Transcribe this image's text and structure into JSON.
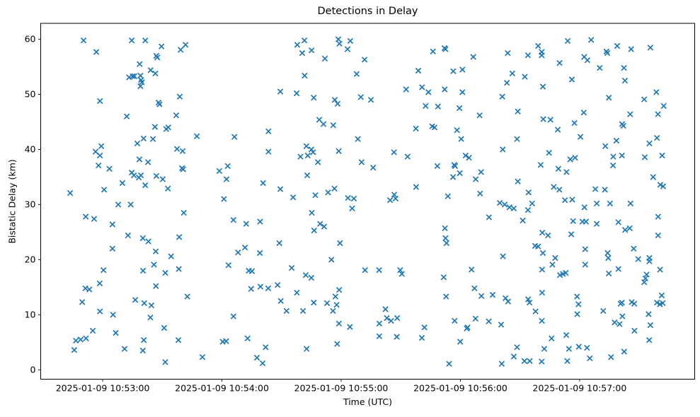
{
  "chart_data": {
    "type": "scatter",
    "title": "Detections in Delay",
    "xlabel": "Time (UTC)",
    "ylabel": "Bistatic Delay (km)",
    "marker": "x",
    "marker_color": "#1f77b4",
    "grid": false,
    "legend": null,
    "x_axis": {
      "time_unit": "seconds after 2025-01-09 10:52:00 UTC",
      "range_s": [
        28.8,
        357.9
      ],
      "tick_s": [
        60,
        120,
        180,
        240,
        300
      ],
      "tick_labels": [
        "2025-01-09 10:53:00",
        "2025-01-09 10:54:00",
        "2025-01-09 10:55:00",
        "2025-01-09 10:56:00",
        "2025-01-09 10:57:00"
      ]
    },
    "y_axis": {
      "range": [
        -1.7,
        62.9
      ],
      "ticks": [
        0,
        10,
        20,
        30,
        40,
        50,
        60
      ],
      "tick_labels": [
        "0",
        "10",
        "20",
        "30",
        "40",
        "50",
        "60"
      ]
    },
    "points": [
      [
        50.4,
        59.8
      ],
      [
        56.8,
        57.7
      ],
      [
        74.6,
        59.8
      ],
      [
        81.4,
        59.8
      ],
      [
        89.6,
        58.7
      ],
      [
        99.2,
        58.1
      ],
      [
        101.7,
        59.0
      ],
      [
        87.0,
        57.0
      ],
      [
        87.5,
        56.7
      ],
      [
        78.6,
        55.5
      ],
      [
        84.1,
        54.4
      ],
      [
        86.5,
        53.8
      ],
      [
        73.3,
        53.1
      ],
      [
        75.1,
        53.3
      ],
      [
        76.0,
        53.3
      ],
      [
        79.0,
        53.4
      ],
      [
        79.3,
        52.6
      ],
      [
        79.7,
        52.2
      ],
      [
        79.0,
        51.5
      ],
      [
        58.6,
        48.8
      ],
      [
        98.8,
        49.6
      ],
      [
        88.1,
        48.5
      ],
      [
        88.6,
        48.2
      ],
      [
        72.1,
        46.0
      ],
      [
        97.0,
        46.2
      ],
      [
        86.3,
        44.1
      ],
      [
        92.0,
        43.7
      ],
      [
        93.0,
        44.0
      ],
      [
        107.4,
        42.4
      ],
      [
        80.6,
        42.0
      ],
      [
        85.3,
        41.9
      ],
      [
        77.4,
        41.1
      ],
      [
        59.3,
        40.6
      ],
      [
        56.4,
        39.6
      ],
      [
        58.6,
        38.9
      ],
      [
        97.4,
        40.1
      ],
      [
        100.2,
        39.7
      ],
      [
        57.9,
        37.1
      ],
      [
        63.4,
        36.5
      ],
      [
        78.5,
        38.2
      ],
      [
        82.8,
        37.7
      ],
      [
        74.6,
        35.8
      ],
      [
        75.7,
        35.3
      ],
      [
        78.2,
        34.9
      ],
      [
        79.2,
        35.3
      ],
      [
        87.0,
        35.2
      ],
      [
        90.2,
        34.6
      ],
      [
        99.9,
        36.6
      ],
      [
        100.5,
        36.4
      ],
      [
        69.9,
        33.9
      ],
      [
        81.4,
        33.5
      ],
      [
        92.8,
        32.9
      ],
      [
        60.7,
        32.7
      ],
      [
        43.6,
        32.1
      ],
      [
        67.8,
        30.0
      ],
      [
        74.1,
        30.0
      ],
      [
        51.5,
        27.8
      ],
      [
        55.7,
        27.4
      ],
      [
        100.8,
        28.5
      ],
      [
        64.9,
        26.4
      ],
      [
        72.7,
        24.4
      ],
      [
        80.2,
        23.9
      ],
      [
        83.0,
        23.3
      ],
      [
        98.5,
        24.1
      ],
      [
        64.9,
        22.0
      ],
      [
        86.7,
        21.5
      ],
      [
        94.4,
        20.6
      ],
      [
        85.8,
        19.1
      ],
      [
        80.3,
        18.0
      ],
      [
        91.5,
        17.6
      ],
      [
        98.3,
        18.3
      ],
      [
        60.4,
        18.1
      ],
      [
        58.5,
        15.7
      ],
      [
        51.3,
        14.8
      ],
      [
        53.3,
        14.6
      ],
      [
        86.8,
        15.2
      ],
      [
        102.6,
        13.3
      ],
      [
        49.7,
        12.3
      ],
      [
        76.4,
        12.7
      ],
      [
        80.9,
        12.1
      ],
      [
        84.5,
        11.7
      ],
      [
        58.6,
        10.6
      ],
      [
        65.2,
        10.0
      ],
      [
        84.0,
        9.5
      ],
      [
        90.9,
        7.6
      ],
      [
        66.6,
        6.7
      ],
      [
        55.0,
        7.1
      ],
      [
        46.5,
        5.3
      ],
      [
        48.9,
        5.5
      ],
      [
        51.6,
        5.7
      ],
      [
        80.7,
        5.4
      ],
      [
        98.1,
        5.4
      ],
      [
        45.7,
        3.6
      ],
      [
        71.0,
        3.8
      ],
      [
        80.2,
        3.5
      ],
      [
        110.2,
        2.3
      ],
      [
        91.5,
        1.4
      ],
      [
        157.9,
        59.0
      ],
      [
        161.5,
        59.8
      ],
      [
        160.4,
        57.5
      ],
      [
        165.1,
        58.0
      ],
      [
        178.6,
        60.0
      ],
      [
        179.1,
        59.2
      ],
      [
        184.6,
        59.7
      ],
      [
        183.2,
        58.2
      ],
      [
        171.8,
        56.5
      ],
      [
        191.8,
        56.3
      ],
      [
        161.6,
        53.4
      ],
      [
        187.8,
        53.7
      ],
      [
        149.4,
        50.5
      ],
      [
        157.6,
        50.2
      ],
      [
        166.2,
        49.4
      ],
      [
        176.8,
        49.0
      ],
      [
        178.2,
        48.3
      ],
      [
        189.9,
        49.5
      ],
      [
        169.0,
        45.4
      ],
      [
        171.1,
        44.6
      ],
      [
        176.0,
        44.4
      ],
      [
        143.4,
        43.3
      ],
      [
        126.3,
        42.3
      ],
      [
        188.4,
        41.9
      ],
      [
        143.4,
        39.6
      ],
      [
        162.5,
        40.6
      ],
      [
        165.0,
        40.0
      ],
      [
        159.5,
        38.7
      ],
      [
        163.2,
        38.9
      ],
      [
        165.9,
        39.5
      ],
      [
        168.3,
        37.7
      ],
      [
        178.8,
        39.7
      ],
      [
        190.3,
        37.7
      ],
      [
        122.9,
        37.0
      ],
      [
        118.7,
        36.1
      ],
      [
        122.3,
        34.6
      ],
      [
        140.7,
        33.9
      ],
      [
        162.9,
        35.3
      ],
      [
        149.4,
        32.8
      ],
      [
        155.8,
        31.3
      ],
      [
        167.0,
        31.7
      ],
      [
        173.4,
        32.2
      ],
      [
        176.6,
        32.9
      ],
      [
        183.4,
        31.2
      ],
      [
        186.4,
        31.1
      ],
      [
        121.0,
        31.0
      ],
      [
        125.8,
        27.2
      ],
      [
        132.2,
        26.5
      ],
      [
        139.2,
        26.9
      ],
      [
        165.2,
        28.5
      ],
      [
        169.4,
        26.5
      ],
      [
        171.4,
        26.0
      ],
      [
        166.4,
        25.3
      ],
      [
        179.4,
        23.0
      ],
      [
        148.9,
        23.0
      ],
      [
        131.6,
        22.2
      ],
      [
        128.1,
        21.3
      ],
      [
        139.1,
        21.2
      ],
      [
        175.1,
        20.0
      ],
      [
        123.3,
        19.0
      ],
      [
        133.5,
        18.0
      ],
      [
        135.1,
        17.9
      ],
      [
        155.1,
        18.5
      ],
      [
        192.0,
        18.1
      ],
      [
        162.2,
        17.2
      ],
      [
        165.0,
        16.7
      ],
      [
        134.7,
        14.7
      ],
      [
        139.4,
        15.1
      ],
      [
        143.3,
        14.8
      ],
      [
        148.0,
        15.4
      ],
      [
        157.7,
        14.0
      ],
      [
        149.6,
        12.5
      ],
      [
        179.0,
        14.5
      ],
      [
        177.1,
        13.3
      ],
      [
        166.2,
        12.2
      ],
      [
        172.9,
        12.1
      ],
      [
        177.7,
        11.8
      ],
      [
        175.9,
        10.7
      ],
      [
        152.5,
        10.7
      ],
      [
        160.8,
        10.7
      ],
      [
        125.8,
        9.7
      ],
      [
        178.9,
        8.4
      ],
      [
        184.4,
        7.8
      ],
      [
        132.9,
        5.7
      ],
      [
        120.4,
        5.1
      ],
      [
        122.1,
        5.2
      ],
      [
        142.0,
        4.1
      ],
      [
        162.6,
        3.8
      ],
      [
        178.0,
        4.7
      ],
      [
        137.6,
        2.2
      ],
      [
        140.5,
        1.2
      ],
      [
        185.5,
        29.3
      ],
      [
        226.2,
        57.8
      ],
      [
        232.0,
        58.4
      ],
      [
        232.5,
        58.2
      ],
      [
        246.5,
        56.8
      ],
      [
        263.8,
        57.5
      ],
      [
        218.8,
        54.3
      ],
      [
        236.4,
        54.2
      ],
      [
        241.0,
        54.5
      ],
      [
        266.1,
        53.8
      ],
      [
        272.4,
        53.2
      ],
      [
        263.4,
        52.1
      ],
      [
        212.7,
        50.9
      ],
      [
        220.7,
        51.3
      ],
      [
        223.9,
        50.4
      ],
      [
        232.1,
        50.9
      ],
      [
        241.0,
        50.4
      ],
      [
        261.1,
        49.6
      ],
      [
        195.0,
        49.0
      ],
      [
        222.5,
        47.9
      ],
      [
        228.7,
        47.8
      ],
      [
        239.5,
        47.5
      ],
      [
        249.7,
        46.2
      ],
      [
        268.9,
        46.9
      ],
      [
        217.6,
        43.8
      ],
      [
        225.8,
        44.2
      ],
      [
        227.0,
        44.0
      ],
      [
        238.3,
        43.5
      ],
      [
        240.4,
        41.9
      ],
      [
        268.5,
        41.9
      ],
      [
        261.3,
        40.0
      ],
      [
        206.6,
        39.5
      ],
      [
        213.4,
        38.7
      ],
      [
        242.6,
        38.9
      ],
      [
        244.3,
        38.5
      ],
      [
        228.4,
        37.0
      ],
      [
        236.9,
        37.2
      ],
      [
        237.3,
        37.0
      ],
      [
        196.1,
        36.7
      ],
      [
        236.3,
        35.0
      ],
      [
        239.7,
        35.7
      ],
      [
        247.7,
        34.6
      ],
      [
        250.4,
        35.9
      ],
      [
        268.9,
        34.2
      ],
      [
        217.7,
        33.2
      ],
      [
        204.6,
        30.8
      ],
      [
        206.7,
        31.8
      ],
      [
        207.4,
        31.1
      ],
      [
        233.7,
        31.5
      ],
      [
        249.9,
        32.0
      ],
      [
        259.8,
        30.3
      ],
      [
        262.3,
        30.0
      ],
      [
        264.7,
        29.5
      ],
      [
        266.9,
        29.3
      ],
      [
        271.4,
        27.1
      ],
      [
        254.4,
        27.7
      ],
      [
        232.2,
        25.7
      ],
      [
        232.5,
        23.9
      ],
      [
        233.0,
        23.0
      ],
      [
        261.4,
        20.6
      ],
      [
        199.1,
        18.1
      ],
      [
        209.7,
        18.1
      ],
      [
        210.5,
        17.4
      ],
      [
        245.6,
        18.2
      ],
      [
        231.6,
        16.8
      ],
      [
        247.1,
        14.8
      ],
      [
        232.8,
        13.3
      ],
      [
        250.6,
        13.4
      ],
      [
        256.2,
        13.6
      ],
      [
        262.7,
        13.0
      ],
      [
        264.0,
        12.4
      ],
      [
        202.3,
        11.0
      ],
      [
        203.0,
        9.4
      ],
      [
        205.1,
        8.9
      ],
      [
        208.2,
        9.4
      ],
      [
        199.2,
        8.4
      ],
      [
        221.9,
        7.7
      ],
      [
        237.1,
        8.9
      ],
      [
        243.2,
        7.5
      ],
      [
        243.6,
        7.7
      ],
      [
        247.6,
        9.3
      ],
      [
        254.3,
        8.8
      ],
      [
        260.5,
        8.2
      ],
      [
        199.2,
        6.1
      ],
      [
        208.0,
        6.0
      ],
      [
        220.6,
        5.8
      ],
      [
        239.9,
        5.1
      ],
      [
        268.5,
        4.1
      ],
      [
        266.9,
        2.4
      ],
      [
        272.2,
        1.6
      ],
      [
        234.3,
        1.1
      ],
      [
        260.8,
        1.1
      ],
      [
        279.1,
        58.8
      ],
      [
        280.9,
        57.7
      ],
      [
        280.9,
        57.1
      ],
      [
        274.0,
        57.1
      ],
      [
        294.0,
        59.7
      ],
      [
        305.8,
        59.9
      ],
      [
        318.9,
        58.8
      ],
      [
        313.5,
        57.8
      ],
      [
        313.9,
        57.5
      ],
      [
        325.9,
        58.2
      ],
      [
        335.6,
        58.5
      ],
      [
        289.9,
        55.7
      ],
      [
        302.3,
        56.8
      ],
      [
        303.9,
        56.2
      ],
      [
        310.1,
        54.8
      ],
      [
        322.3,
        54.8
      ],
      [
        296.1,
        52.7
      ],
      [
        322.8,
        52.5
      ],
      [
        281.5,
        51.4
      ],
      [
        314.7,
        49.4
      ],
      [
        332.5,
        49.1
      ],
      [
        338.6,
        50.4
      ],
      [
        342.3,
        47.9
      ],
      [
        339.4,
        46.4
      ],
      [
        325.4,
        46.4
      ],
      [
        302.1,
        46.7
      ],
      [
        281.7,
        45.5
      ],
      [
        285.3,
        45.4
      ],
      [
        297.4,
        44.8
      ],
      [
        289.0,
        43.6
      ],
      [
        321.4,
        44.6
      ],
      [
        322.0,
        44.3
      ],
      [
        300.4,
        42.3
      ],
      [
        318.5,
        41.6
      ],
      [
        312.9,
        40.6
      ],
      [
        338.9,
        42.1
      ],
      [
        335.1,
        41.1
      ],
      [
        284.6,
        39.4
      ],
      [
        280.4,
        37.2
      ],
      [
        289.3,
        36.5
      ],
      [
        293.4,
        35.9
      ],
      [
        295.3,
        38.2
      ],
      [
        297.7,
        38.5
      ],
      [
        316.9,
        38.7
      ],
      [
        321.3,
        38.9
      ],
      [
        316.8,
        37.1
      ],
      [
        332.8,
        38.6
      ],
      [
        341.5,
        38.9
      ],
      [
        337.0,
        35.0
      ],
      [
        340.6,
        33.6
      ],
      [
        342.0,
        33.3
      ],
      [
        287.0,
        33.2
      ],
      [
        289.8,
        32.7
      ],
      [
        312.7,
        32.7
      ],
      [
        274.3,
        32.2
      ],
      [
        307.9,
        32.8
      ],
      [
        296.7,
        27.0
      ],
      [
        301.4,
        26.9
      ],
      [
        303.2,
        26.9
      ],
      [
        308.6,
        26.5
      ],
      [
        319.5,
        26.8
      ],
      [
        322.9,
        25.4
      ],
      [
        325.2,
        25.7
      ],
      [
        339.5,
        27.8
      ],
      [
        281.2,
        24.9
      ],
      [
        284.1,
        24.4
      ],
      [
        295.8,
        24.6
      ],
      [
        339.5,
        24.4
      ],
      [
        277.6,
        22.5
      ],
      [
        279.1,
        22.4
      ],
      [
        281.5,
        21.2
      ],
      [
        302.8,
        21.9
      ],
      [
        327.2,
        22.0
      ],
      [
        287.7,
        20.3
      ],
      [
        314.1,
        21.2
      ],
      [
        314.4,
        20.3
      ],
      [
        329.5,
        20.1
      ],
      [
        335.1,
        20.3
      ],
      [
        335.1,
        19.7
      ],
      [
        286.3,
        19.1
      ],
      [
        302.8,
        19.1
      ],
      [
        281.1,
        18.2
      ],
      [
        290.1,
        17.2
      ],
      [
        291.6,
        17.4
      ],
      [
        293.0,
        17.6
      ],
      [
        314.7,
        17.5
      ],
      [
        319.5,
        18.3
      ],
      [
        340.5,
        18.2
      ],
      [
        333.7,
        17.3
      ],
      [
        333.1,
        16.6
      ],
      [
        332.5,
        15.9
      ],
      [
        281.1,
        14.0
      ],
      [
        274.1,
        12.8
      ],
      [
        274.8,
        12.2
      ],
      [
        298.7,
        13.3
      ],
      [
        299.4,
        11.9
      ],
      [
        298.8,
        10.1
      ],
      [
        311.9,
        10.7
      ],
      [
        277.8,
        10.6
      ],
      [
        281.0,
        8.9
      ],
      [
        321.3,
        12.2
      ],
      [
        320.6,
        12.0
      ],
      [
        326.2,
        12.3
      ],
      [
        327.5,
        12.0
      ],
      [
        341.3,
        13.5
      ],
      [
        338.9,
        12.2
      ],
      [
        340.4,
        11.9
      ],
      [
        341.8,
        12.1
      ],
      [
        334.7,
        10.1
      ],
      [
        317.6,
        8.6
      ],
      [
        320.1,
        8.3
      ],
      [
        321.5,
        9.7
      ],
      [
        335.6,
        8.1
      ],
      [
        327.6,
        7.1
      ],
      [
        293.3,
        6.3
      ],
      [
        285.9,
        5.7
      ],
      [
        335.0,
        5.4
      ],
      [
        282.2,
        3.8
      ],
      [
        294.6,
        3.8
      ],
      [
        299.6,
        4.2
      ],
      [
        303.7,
        4.0
      ],
      [
        322.4,
        3.3
      ],
      [
        315.8,
        2.3
      ],
      [
        305.1,
        2.1
      ],
      [
        293.8,
        1.6
      ],
      [
        274.9,
        1.6
      ],
      [
        280.9,
        1.5
      ],
      [
        302.4,
        29.5
      ],
      [
        292.6,
        30.8
      ],
      [
        296.3,
        30.9
      ],
      [
        308.6,
        30.2
      ],
      [
        315.3,
        30.2
      ],
      [
        325.6,
        30.2
      ],
      [
        274.0,
        29.0
      ],
      [
        276.1,
        30.2
      ]
    ]
  }
}
